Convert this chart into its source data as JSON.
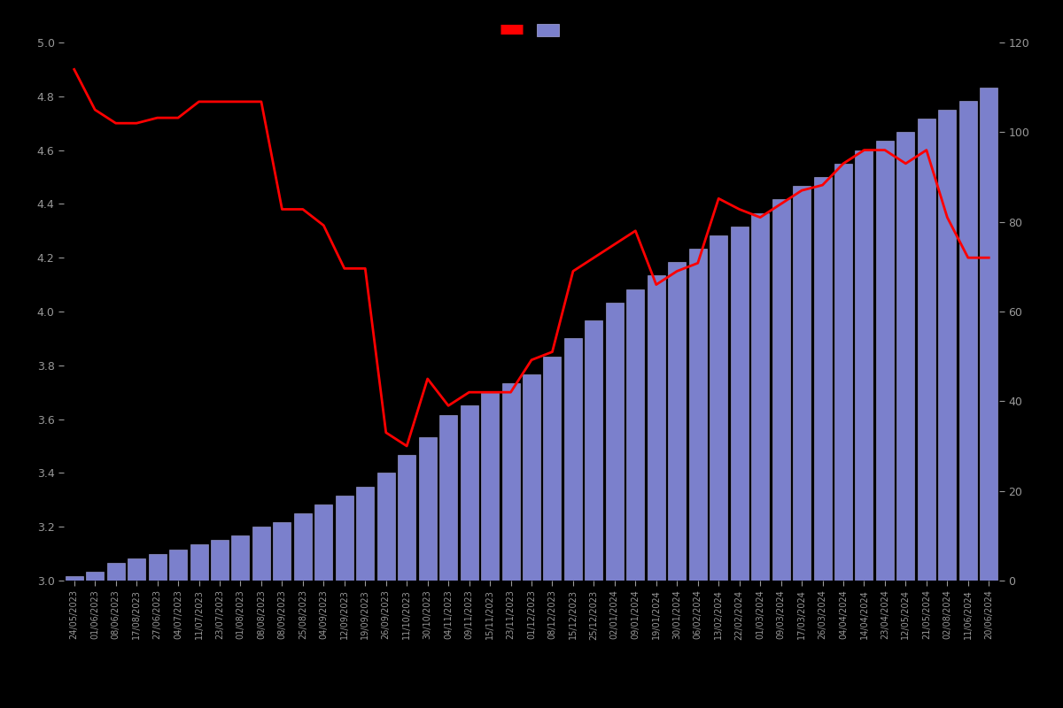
{
  "dates": [
    "24/05/2023",
    "01/06/2023",
    "08/06/2023",
    "17/08/2023",
    "27/06/2023",
    "04/07/2023",
    "11/07/2023",
    "23/07/2023",
    "01/08/2023",
    "08/08/2023",
    "08/09/2023",
    "25/08/2023",
    "04/09/2023",
    "12/09/2023",
    "19/09/2023",
    "26/09/2023",
    "11/10/2023",
    "30/10/2023",
    "04/11/2023",
    "09/11/2023",
    "15/11/2023",
    "23/11/2023",
    "01/12/2023",
    "08/12/2023",
    "15/12/2023",
    "25/12/2023",
    "02/01/2024",
    "09/01/2024",
    "19/01/2024",
    "30/01/2024",
    "06/02/2024",
    "13/02/2024",
    "22/02/2024",
    "01/03/2024",
    "09/03/2024",
    "17/03/2024",
    "26/03/2024",
    "04/04/2024",
    "14/04/2024",
    "23/04/2024",
    "12/05/2024",
    "21/05/2024",
    "02/08/2024",
    "11/06/2024",
    "20/06/2024"
  ],
  "ratings": [
    4.9,
    4.75,
    4.7,
    4.7,
    4.72,
    4.72,
    4.78,
    4.78,
    4.78,
    4.78,
    4.38,
    4.38,
    4.32,
    4.16,
    4.16,
    3.55,
    3.5,
    3.75,
    3.65,
    3.7,
    3.7,
    3.7,
    3.82,
    3.85,
    4.15,
    4.2,
    4.25,
    4.3,
    4.1,
    4.15,
    4.18,
    4.42,
    4.38,
    4.35,
    4.4,
    4.45,
    4.47,
    4.55,
    4.6,
    4.6,
    4.55,
    4.6,
    4.35,
    4.2,
    4.2
  ],
  "counts": [
    1,
    2,
    4,
    5,
    6,
    7,
    8,
    9,
    10,
    12,
    13,
    15,
    17,
    19,
    21,
    24,
    28,
    32,
    37,
    39,
    42,
    44,
    46,
    50,
    54,
    58,
    62,
    65,
    68,
    71,
    74,
    77,
    79,
    82,
    85,
    88,
    90,
    93,
    96,
    98,
    100,
    103,
    105,
    107,
    110
  ],
  "background_color": "#000000",
  "bar_color": "#7B80CC",
  "bar_edge_color": "#AAAADD",
  "line_color": "#FF0000",
  "text_color": "#999999",
  "left_ylim": [
    3.0,
    5.0
  ],
  "right_ylim": [
    0,
    120
  ],
  "left_yticks": [
    3.0,
    3.2,
    3.4,
    3.6,
    3.8,
    4.0,
    4.2,
    4.4,
    4.6,
    4.8,
    5.0
  ],
  "right_yticks": [
    0,
    20,
    40,
    60,
    80,
    100,
    120
  ]
}
